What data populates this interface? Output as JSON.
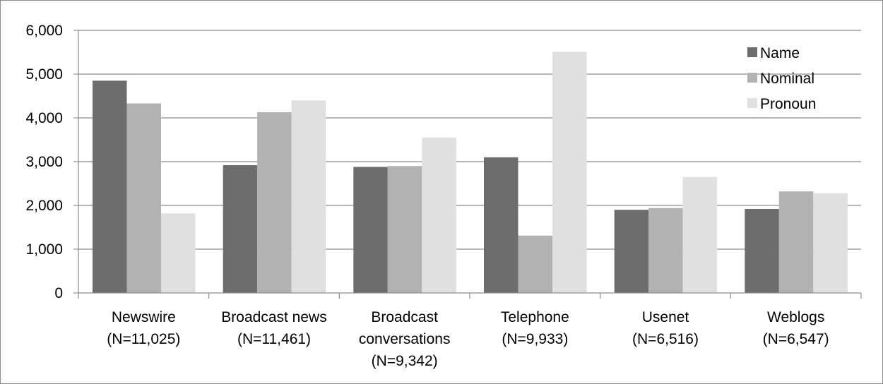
{
  "chart_data": {
    "type": "bar",
    "categories": [
      [
        "Newswire",
        "(N=11,025)"
      ],
      [
        "Broadcast news",
        "(N=11,461)"
      ],
      [
        "Broadcast",
        "conversations",
        "(N=9,342)"
      ],
      [
        "Telephone",
        "(N=9,933)"
      ],
      [
        "Usenet",
        "(N=6,516)"
      ],
      [
        "Weblogs",
        "(N=6,547)"
      ]
    ],
    "series": [
      {
        "name": "Name",
        "color": "#6d6d6d",
        "values": [
          4850,
          2920,
          2880,
          3100,
          1900,
          1920
        ]
      },
      {
        "name": "Nominal",
        "color": "#b2b2b2",
        "values": [
          4330,
          4130,
          2900,
          1310,
          1940,
          2320
        ]
      },
      {
        "name": "Pronoun",
        "color": "#e0e0e0",
        "values": [
          1820,
          4400,
          3550,
          5510,
          2650,
          2280
        ]
      }
    ],
    "ylim": [
      0,
      6000
    ],
    "yticks": [
      "0",
      "1,000",
      "2,000",
      "3,000",
      "4,000",
      "5,000",
      "6,000"
    ],
    "ytick_values": [
      0,
      1000,
      2000,
      3000,
      4000,
      5000,
      6000
    ],
    "grid": true,
    "legend_position": "top-right",
    "title": "",
    "xlabel": "",
    "ylabel": ""
  }
}
